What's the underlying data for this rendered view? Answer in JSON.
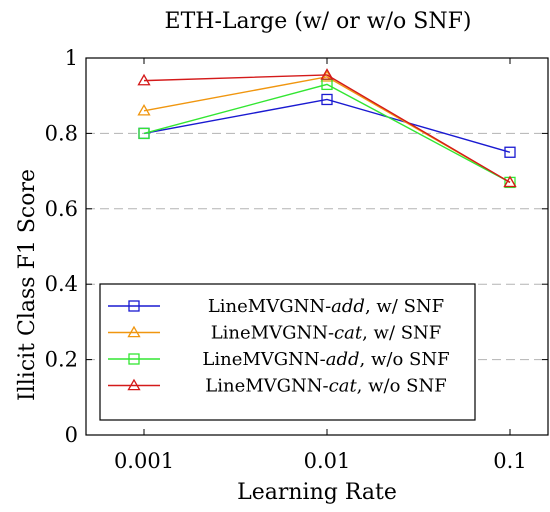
{
  "chart_data": {
    "type": "line",
    "title": "ETH-Large (w/ or w/o SNF)",
    "xlabel": "Learning Rate",
    "ylabel": "Illicit Class F1 Score",
    "x": [
      "0.001",
      "0.01",
      "0.1"
    ],
    "xscale": "log",
    "ylim": [
      0,
      1
    ],
    "yticks": [
      "0",
      "0.2",
      "0.4",
      "0.6",
      "0.8",
      "1"
    ],
    "grid": "horizontal dashed",
    "legend_position": "bottom-left",
    "series": [
      {
        "name": "LineMVGNN-add, w/ SNF",
        "name_parts": {
          "prefix": "LineMVGNN-",
          "italic": "add",
          "suffix": ", w/ SNF"
        },
        "color": "#1a1ad1",
        "marker": "square",
        "values": [
          0.8,
          0.89,
          0.75
        ]
      },
      {
        "name": "LineMVGNN-cat, w/ SNF",
        "name_parts": {
          "prefix": "LineMVGNN-",
          "italic": "cat",
          "suffix": ", w/ SNF"
        },
        "color": "#f0960f",
        "marker": "triangle",
        "values": [
          0.86,
          0.95,
          0.67
        ]
      },
      {
        "name": "LineMVGNN-add, w/o SNF",
        "name_parts": {
          "prefix": "LineMVGNN-",
          "italic": "add",
          "suffix": ", w/o SNF"
        },
        "color": "#32e632",
        "marker": "square",
        "values": [
          0.8,
          0.93,
          0.67
        ]
      },
      {
        "name": "LineMVGNN-cat, w/o SNF",
        "name_parts": {
          "prefix": "LineMVGNN-",
          "italic": "cat",
          "suffix": ", w/o SNF"
        },
        "color": "#d41a1a",
        "marker": "triangle",
        "values": [
          0.94,
          0.955,
          0.67
        ]
      }
    ]
  }
}
